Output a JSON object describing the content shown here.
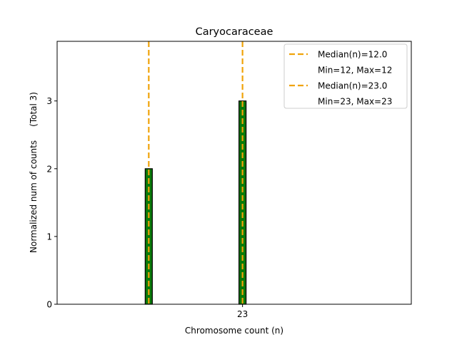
{
  "chart_data": {
    "type": "bar",
    "title": "Caryocaraceae",
    "xlabel": "Chromosome count (n)",
    "ylabel": "Normalized num of counts     (Total 3)",
    "xlim": [
      1.25,
      42.8
    ],
    "ylim": [
      0,
      3.88
    ],
    "yticks": [
      0,
      1,
      2,
      3
    ],
    "xticks": [
      {
        "value": 23,
        "label": "23"
      }
    ],
    "bars": [
      {
        "x": 12,
        "value": 2
      },
      {
        "x": 23,
        "value": 3
      }
    ],
    "baseline": {
      "from": 1.25,
      "to": 15,
      "value": 0
    },
    "median_lines": [
      {
        "x": 12,
        "label": "Median(n)=12.0",
        "range_label": "Min=12, Max=12"
      },
      {
        "x": 23,
        "label": "Median(n)=23.0",
        "range_label": "Min=23, Max=23"
      }
    ],
    "legend_placement": "top-right",
    "grid": false,
    "colors": {
      "bar_fill": "#0a7a0a",
      "bar_edge": "#000000",
      "median_line": "#f0a30a"
    }
  }
}
